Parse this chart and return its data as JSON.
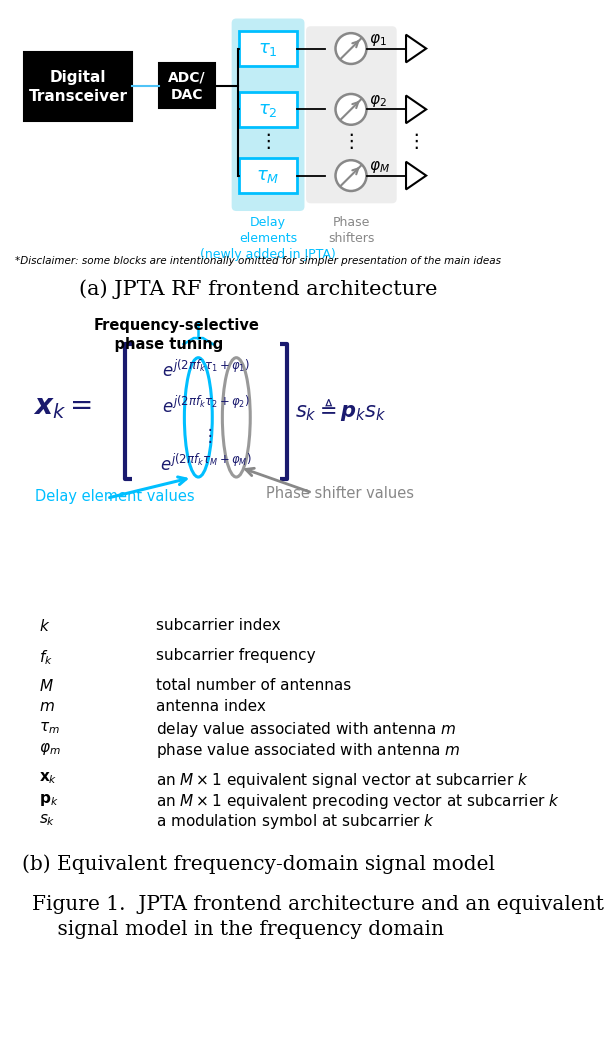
{
  "bg_color": "#ffffff",
  "cyan_color": "#00BFFF",
  "dark_blue": "#1a1a6e",
  "gray_color": "#888888",
  "light_cyan_bg": "#ADE8F4",
  "light_gray_bg": "#DDDDDD",
  "title_a": "(a) JPTA RF frontend architecture",
  "title_b": "(b) Equivalent frequency-domain signal model",
  "figure_caption": "Figure 1.  JPTA frontend architecture and an equivalent\n    signal model in the frequency domain",
  "disclaimer": "*Disclaimer: some blocks are intentionally omitted for simpler presentation of the main ideas",
  "delay_label": "Delay\nelements\n(newly added in JPTA)",
  "phase_label": "Phase\nshifters",
  "freq_sel_label": "Frequency-selective\n    phase tuning",
  "delay_elem_label": "Delay element values",
  "phase_shift_label": "Phase shifter values",
  "table_rows": [
    [
      "$k$",
      "subcarrier index"
    ],
    [
      "$f_k$",
      "subcarrier frequency"
    ],
    [
      "$M$",
      "total number of antennas"
    ],
    [
      "$m$",
      "antenna index"
    ],
    [
      "$\\tau_m$",
      "delay value associated with antenna $m$"
    ],
    [
      "$\\varphi_m$",
      "phase value associated with antenna $m$"
    ],
    [
      "$\\mathbf{x}_k$",
      "an $M \\times 1$ equivalent signal vector at subcarrier $k$"
    ],
    [
      "$\\mathbf{p}_k$",
      "an $M \\times 1$ equivalent precoding vector at subcarrier $k$"
    ],
    [
      "$s_k$",
      "a modulation symbol at subcarrier $k$"
    ]
  ],
  "table_gaps": [
    0,
    1,
    1,
    0,
    0,
    0,
    1,
    0,
    0
  ]
}
